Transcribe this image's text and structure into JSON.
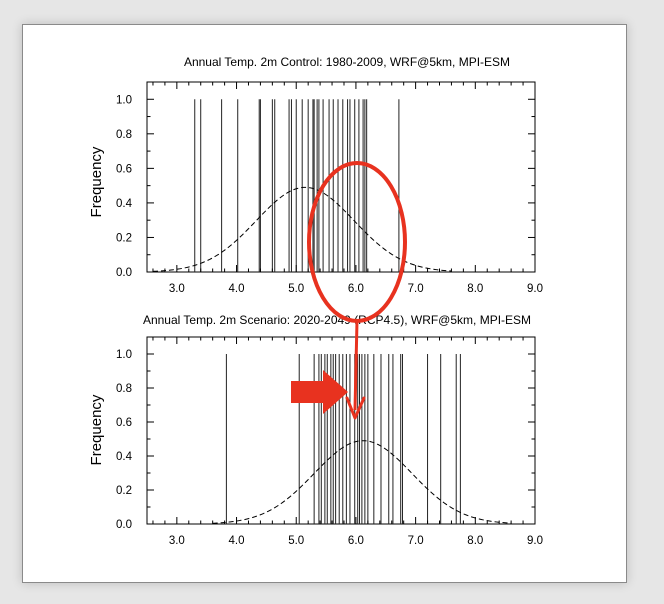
{
  "colors": {
    "annotation": "#e8321f",
    "axis": "#000000",
    "background": "#ffffff"
  },
  "annotation": {
    "ellipse": "highlight-ellipse",
    "arrow": "arrow-down-icon",
    "block_arrow": "arrow-right-icon"
  },
  "chart_data": [
    {
      "type": "histogram-lines-with-normal-fit",
      "title": "Annual Temp. 2m Control: 1980-2009, WRF@5km, MPI-ESM",
      "xlabel": "",
      "ylabel": "Frequency",
      "xlim": [
        2.5,
        9.0
      ],
      "ylim": [
        0,
        1.1
      ],
      "xticks": [
        "3.0",
        "4.0",
        "5.0",
        "6.0",
        "7.0",
        "8.0",
        "9.0"
      ],
      "yticks": [
        "0.0",
        "0.2",
        "0.4",
        "0.6",
        "0.8",
        "1.0"
      ],
      "grid": false,
      "samples": [
        3.3,
        3.4,
        3.75,
        4.02,
        4.38,
        4.4,
        4.6,
        4.64,
        4.88,
        4.92,
        5.0,
        5.1,
        5.2,
        5.28,
        5.3,
        5.35,
        5.38,
        5.45,
        5.55,
        5.62,
        5.7,
        5.78,
        5.86,
        5.9,
        5.98,
        6.05,
        6.12,
        6.15,
        6.18,
        6.72
      ],
      "fit": {
        "mean": 5.15,
        "sd": 0.82,
        "peak": 0.49,
        "range": [
          2.6,
          7.6
        ]
      }
    },
    {
      "type": "histogram-lines-with-normal-fit",
      "title": "Annual Temp. 2m Scenario: 2020-2049 (RCP4.5), WRF@5km, MPI-ESM",
      "xlabel": "",
      "ylabel": "Frequency",
      "xlim": [
        2.5,
        9.0
      ],
      "ylim": [
        0,
        1.1
      ],
      "xticks": [
        "3.0",
        "4.0",
        "5.0",
        "6.0",
        "7.0",
        "8.0",
        "9.0"
      ],
      "yticks": [
        "0.0",
        "0.2",
        "0.4",
        "0.6",
        "0.8",
        "1.0"
      ],
      "grid": false,
      "samples": [
        3.83,
        5.05,
        5.3,
        5.38,
        5.42,
        5.48,
        5.52,
        5.58,
        5.62,
        5.66,
        5.72,
        5.78,
        5.84,
        5.9,
        5.98,
        6.03,
        6.06,
        6.1,
        6.15,
        6.2,
        6.3,
        6.42,
        6.55,
        6.62,
        6.75,
        6.78,
        7.2,
        7.42,
        7.68,
        7.75
      ],
      "fit": {
        "mean": 6.12,
        "sd": 0.82,
        "peak": 0.49,
        "range": [
          3.6,
          8.6
        ]
      }
    }
  ]
}
